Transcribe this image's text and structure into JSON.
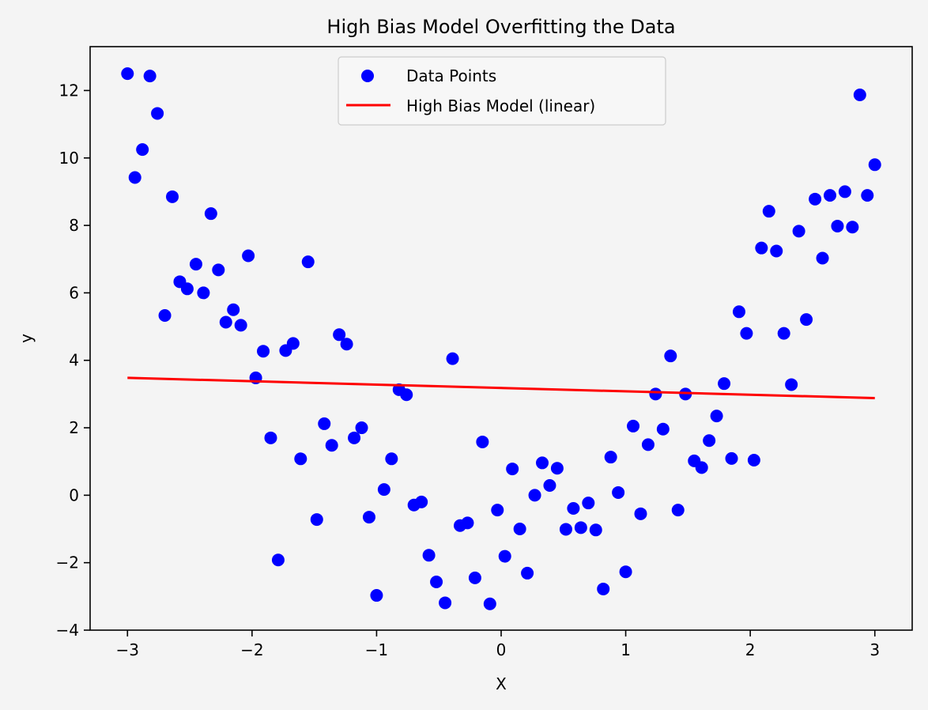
{
  "chart_data": {
    "type": "scatter",
    "title": "High Bias Model Overfitting the Data",
    "xlabel": "X",
    "ylabel": "y",
    "xlim": [
      -3.3,
      3.3
    ],
    "ylim": [
      -4,
      13.3
    ],
    "xticks": [
      -3,
      -2,
      -1,
      0,
      1,
      2,
      3
    ],
    "xtick_labels": [
      "−3",
      "−2",
      "−1",
      "0",
      "1",
      "2",
      "3"
    ],
    "yticks": [
      -4,
      -2,
      0,
      2,
      4,
      6,
      8,
      10,
      12
    ],
    "ytick_labels": [
      "−4",
      "−2",
      "0",
      "2",
      "4",
      "6",
      "8",
      "10",
      "12"
    ],
    "grid": false,
    "legend_position": "top-center",
    "series": [
      {
        "name": "Data Points",
        "kind": "scatter",
        "color": "#0000ff",
        "points": [
          [
            -3.0,
            12.5
          ],
          [
            -2.94,
            9.42
          ],
          [
            -2.88,
            10.25
          ],
          [
            -2.82,
            12.43
          ],
          [
            -2.76,
            11.32
          ],
          [
            -2.7,
            5.33
          ],
          [
            -2.64,
            8.85
          ],
          [
            -2.58,
            6.33
          ],
          [
            -2.52,
            6.12
          ],
          [
            -2.45,
            6.85
          ],
          [
            -2.39,
            6.0
          ],
          [
            -2.33,
            8.35
          ],
          [
            -2.27,
            6.68
          ],
          [
            -2.21,
            5.13
          ],
          [
            -2.15,
            5.5
          ],
          [
            -2.09,
            5.04
          ],
          [
            -2.03,
            7.1
          ],
          [
            -1.97,
            3.48
          ],
          [
            -1.91,
            4.27
          ],
          [
            -1.85,
            1.7
          ],
          [
            -1.79,
            -1.92
          ],
          [
            -1.73,
            4.29
          ],
          [
            -1.67,
            4.5
          ],
          [
            -1.61,
            1.08
          ],
          [
            -1.55,
            6.92
          ],
          [
            -1.48,
            -0.72
          ],
          [
            -1.42,
            2.12
          ],
          [
            -1.36,
            1.48
          ],
          [
            -1.3,
            4.76
          ],
          [
            -1.24,
            4.48
          ],
          [
            -1.18,
            1.7
          ],
          [
            -1.12,
            2.0
          ],
          [
            -1.06,
            -0.65
          ],
          [
            -1.0,
            -2.97
          ],
          [
            -0.94,
            0.17
          ],
          [
            -0.88,
            1.08
          ],
          [
            -0.82,
            3.13
          ],
          [
            -0.76,
            2.98
          ],
          [
            -0.7,
            -0.29
          ],
          [
            -0.64,
            -0.2
          ],
          [
            -0.58,
            -1.78
          ],
          [
            -0.52,
            -2.57
          ],
          [
            -0.45,
            -3.19
          ],
          [
            -0.39,
            4.05
          ],
          [
            -0.33,
            -0.9
          ],
          [
            -0.27,
            -0.82
          ],
          [
            -0.21,
            -2.45
          ],
          [
            -0.15,
            1.58
          ],
          [
            -0.09,
            -3.22
          ],
          [
            -0.03,
            -0.44
          ],
          [
            0.03,
            -1.81
          ],
          [
            0.09,
            0.78
          ],
          [
            0.15,
            -1.0
          ],
          [
            0.21,
            -2.31
          ],
          [
            0.27,
            0.0
          ],
          [
            0.33,
            0.96
          ],
          [
            0.39,
            0.29
          ],
          [
            0.45,
            0.8
          ],
          [
            0.52,
            -1.01
          ],
          [
            0.58,
            -0.39
          ],
          [
            0.64,
            -0.96
          ],
          [
            0.7,
            -0.23
          ],
          [
            0.76,
            -1.03
          ],
          [
            0.82,
            -2.78
          ],
          [
            0.88,
            1.13
          ],
          [
            0.94,
            0.08
          ],
          [
            1.0,
            -2.27
          ],
          [
            1.06,
            2.05
          ],
          [
            1.12,
            -0.55
          ],
          [
            1.18,
            1.5
          ],
          [
            1.24,
            3.0
          ],
          [
            1.3,
            1.96
          ],
          [
            1.36,
            4.13
          ],
          [
            1.42,
            -0.44
          ],
          [
            1.48,
            3.0
          ],
          [
            1.55,
            1.02
          ],
          [
            1.61,
            0.82
          ],
          [
            1.67,
            1.62
          ],
          [
            1.73,
            2.35
          ],
          [
            1.79,
            3.31
          ],
          [
            1.85,
            1.09
          ],
          [
            1.91,
            5.44
          ],
          [
            1.97,
            4.8
          ],
          [
            2.03,
            1.04
          ],
          [
            2.09,
            7.33
          ],
          [
            2.15,
            8.42
          ],
          [
            2.21,
            7.24
          ],
          [
            2.27,
            4.8
          ],
          [
            2.33,
            3.28
          ],
          [
            2.39,
            7.83
          ],
          [
            2.45,
            5.21
          ],
          [
            2.52,
            8.78
          ],
          [
            2.58,
            7.03
          ],
          [
            2.64,
            8.89
          ],
          [
            2.7,
            7.98
          ],
          [
            2.76,
            9.0
          ],
          [
            2.82,
            7.95
          ],
          [
            2.88,
            11.87
          ],
          [
            2.94,
            8.89
          ],
          [
            3.0,
            9.8
          ]
        ]
      },
      {
        "name": "High Bias Model (linear)",
        "kind": "line",
        "color": "#ff0000",
        "points": [
          [
            -3.0,
            3.48
          ],
          [
            3.0,
            2.88
          ]
        ]
      }
    ]
  }
}
